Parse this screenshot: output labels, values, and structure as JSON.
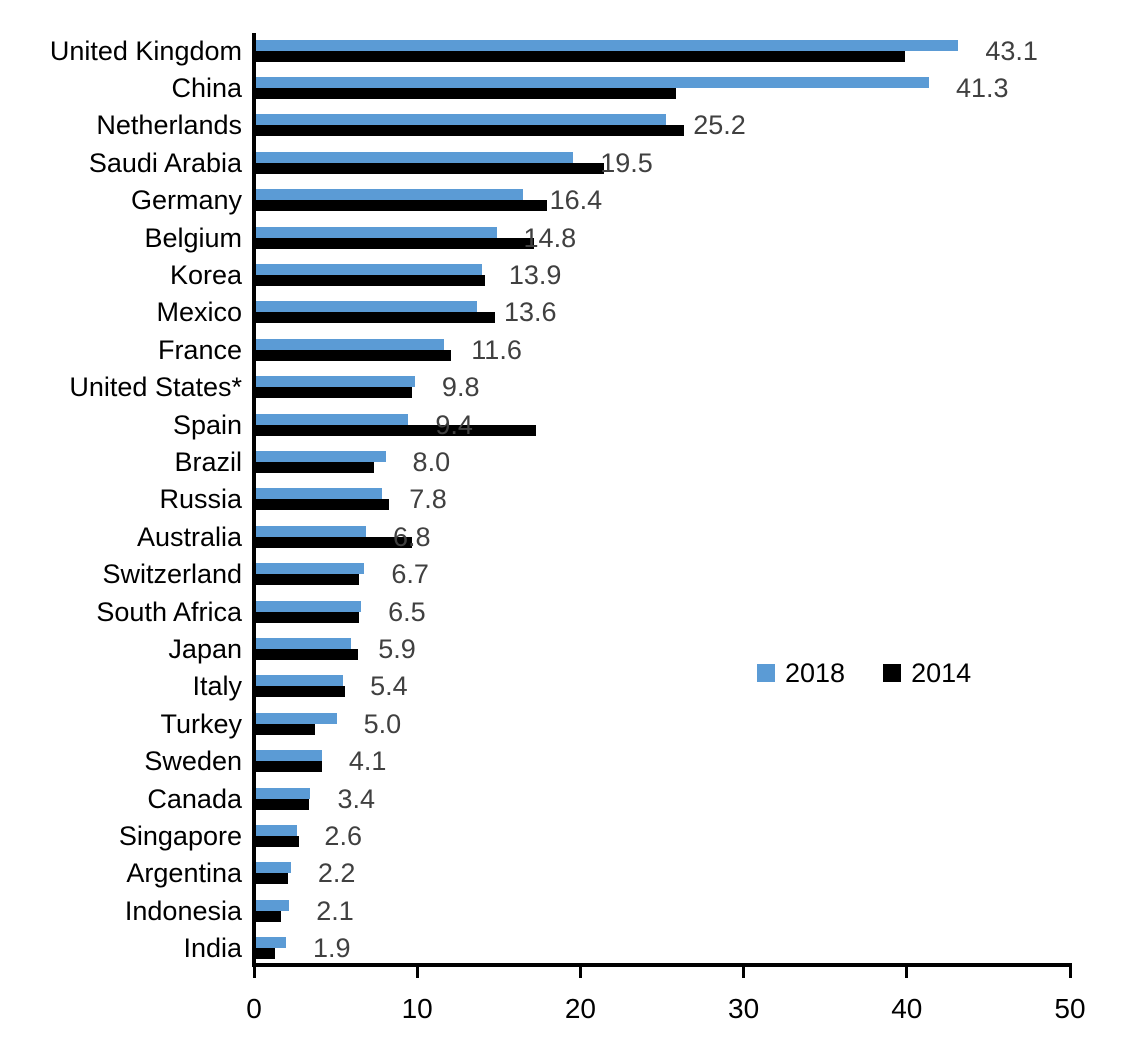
{
  "chart_data": {
    "type": "bar",
    "orientation": "horizontal",
    "title": "",
    "xlabel": "",
    "ylabel": "",
    "xlim": [
      0,
      50
    ],
    "x_ticks": [
      "0",
      "10",
      "20",
      "30",
      "40",
      "50"
    ],
    "grid": false,
    "categories": [
      "United Kingdom",
      "China",
      "Netherlands",
      "Saudi Arabia",
      "Germany",
      "Belgium",
      "Korea",
      "Mexico",
      "France",
      "United States*",
      "Spain",
      "Brazil",
      "Russia",
      "Australia",
      "Switzerland",
      "South Africa",
      "Japan",
      "Italy",
      "Turkey",
      "Sweden",
      "Canada",
      "Singapore",
      "Argentina",
      "Indonesia",
      "India"
    ],
    "series": [
      {
        "name": "2018",
        "color": "#5B9BD5",
        "values": [
          43.1,
          41.3,
          25.2,
          19.5,
          16.4,
          14.8,
          13.9,
          13.6,
          11.6,
          9.8,
          9.4,
          8.0,
          7.8,
          6.8,
          6.7,
          6.5,
          5.9,
          5.4,
          5.0,
          4.1,
          3.4,
          2.6,
          2.2,
          2.1,
          1.9
        ]
      },
      {
        "name": "2014",
        "color": "#000000",
        "values": [
          39.8,
          25.8,
          26.3,
          21.4,
          17.9,
          17.1,
          14.1,
          14.7,
          12.0,
          9.6,
          17.2,
          7.3,
          8.2,
          9.6,
          6.4,
          6.4,
          6.3,
          5.5,
          3.7,
          4.1,
          3.3,
          2.7,
          2.0,
          1.6,
          1.2
        ]
      }
    ],
    "data_labels": [
      "43.1",
      "41.3",
      "25.2",
      "19.5",
      "16.4",
      "14.8",
      "13.9",
      "13.6",
      "11.6",
      "9.8",
      "9.4",
      "8.0",
      "7.8",
      "6.8",
      "6.7",
      "6.5",
      "5.9",
      "5.4",
      "5.0",
      "4.1",
      "3.4",
      "2.6",
      "2.2",
      "2.1",
      "1.9"
    ],
    "legend": {
      "position": "center-right",
      "items": [
        "2018",
        "2014"
      ]
    }
  },
  "colors": {
    "bar_2018": "#5B9BD5",
    "bar_2014": "#000000",
    "value_label": "#404040",
    "axis": "#000000",
    "text": "#000000",
    "background": "#FFFFFF"
  }
}
